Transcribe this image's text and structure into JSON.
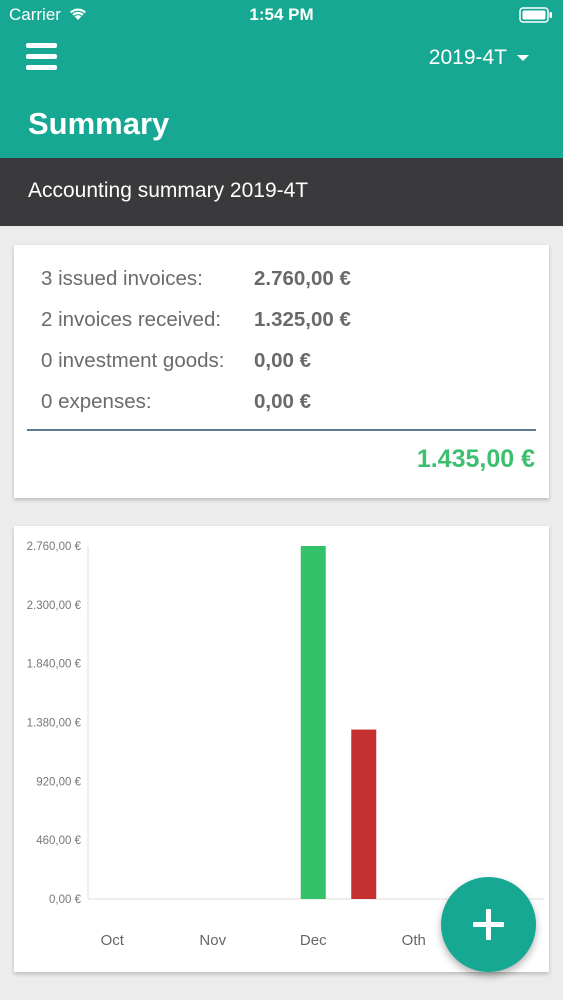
{
  "status_bar": {
    "carrier": "Carrier",
    "time": "1:54 PM"
  },
  "app_bar": {
    "title": "Summary",
    "period": "2019-4T"
  },
  "subheader": {
    "text": "Accounting summary 2019-4T"
  },
  "summary": {
    "rows": [
      {
        "label": "3 issued invoices:",
        "amount": "2.760,00 €"
      },
      {
        "label": "2 invoices received:",
        "amount": "1.325,00 €"
      },
      {
        "label": "0 investment goods:",
        "amount": "0,00 €"
      },
      {
        "label": "0 expenses:",
        "amount": "0,00 €"
      }
    ],
    "total": "1.435,00 €"
  },
  "colors": {
    "primary": "#16a892",
    "income": "#33c16a",
    "expense": "#c53030",
    "total": "#3cbf6e"
  },
  "chart_data": {
    "type": "bar",
    "categories": [
      "Oct",
      "Nov",
      "Dec",
      "Oth"
    ],
    "series": [
      {
        "values": [
          0,
          0,
          2760,
          0
        ]
      },
      {
        "values": [
          0,
          0,
          1325,
          0
        ]
      }
    ],
    "y_ticks": [
      "0,00 €",
      "460,00 €",
      "920,00 €",
      "1.380,00 €",
      "1.840,00 €",
      "2.300,00 €",
      "2.760,00 €"
    ],
    "ylim": [
      0,
      2760
    ],
    "grid": false
  },
  "fab": {
    "icon": "plus-icon"
  }
}
